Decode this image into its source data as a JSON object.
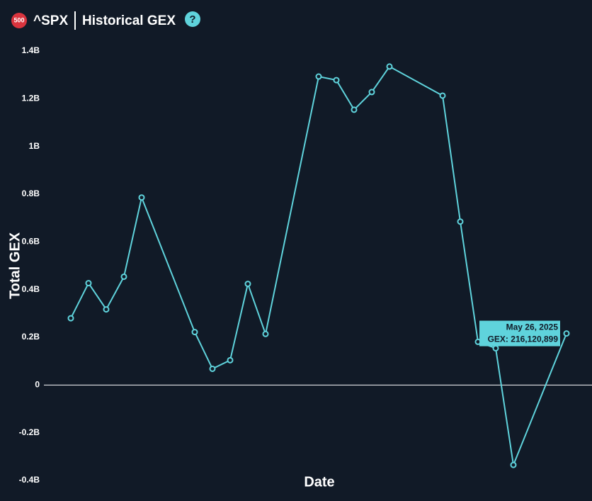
{
  "header": {
    "badge": "500",
    "symbol": "^SPX",
    "title": "Historical GEX",
    "help": "?"
  },
  "chart_data": {
    "type": "line",
    "x_label": "Date",
    "y_label": "Total GEX",
    "categories": [
      null,
      null,
      null,
      null,
      null,
      null,
      null,
      null,
      null,
      null,
      null,
      null,
      null,
      null,
      null,
      null,
      null,
      null,
      null,
      null,
      "May 26, 2025"
    ],
    "series": [
      {
        "name": "GEX",
        "color": "#5fd3dc",
        "values": [
          280000000,
          427000000,
          317000000,
          454000000,
          786000000,
          222000000,
          68000000,
          104000000,
          424000000,
          214000000,
          1293000000,
          1278000000,
          1154000000,
          1228000000,
          1335000000,
          1213000000,
          685000000,
          181000000,
          154000000,
          -335000000,
          216120899
        ],
        "value_labels": [
          null,
          null,
          null,
          null,
          null,
          null,
          null,
          null,
          null,
          null,
          null,
          null,
          null,
          null,
          null,
          null,
          null,
          null,
          null,
          null,
          "GEX: 216,120,899"
        ]
      }
    ],
    "ylim": [
      -400000000,
      1400000000
    ],
    "yticks": [
      {
        "value": -400000000,
        "label": "-0.4B"
      },
      {
        "value": -200000000,
        "label": "-0.2B"
      },
      0,
      {
        "value": 200000000,
        "label": "0.2B"
      },
      {
        "value": 400000000,
        "label": "0.4B"
      },
      {
        "value": 600000000,
        "label": "0.6B"
      },
      {
        "value": 800000000,
        "label": "0.8B"
      },
      {
        "value": 1000000000,
        "label": "1B"
      },
      {
        "value": 1200000000,
        "label": "1.2B"
      },
      {
        "value": 1400000000,
        "label": "1.4B"
      }
    ],
    "zero_line": true
  }
}
